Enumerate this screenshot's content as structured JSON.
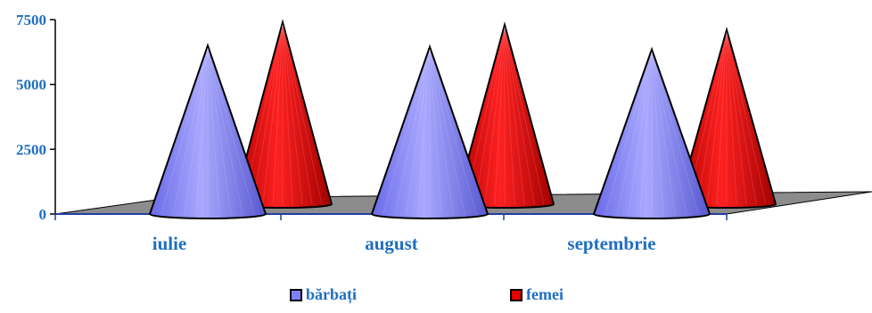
{
  "chart_data": {
    "type": "bar",
    "style": "3d-cone",
    "categories": [
      "iulie",
      "august",
      "septembrie"
    ],
    "series": [
      {
        "name": "bărbați",
        "values": [
          6500,
          6450,
          6350
        ],
        "color": "#8080ff"
      },
      {
        "name": "femei",
        "values": [
          7400,
          7300,
          7100
        ],
        "color": "#e00000"
      }
    ],
    "yticks": [
      0,
      2500,
      5000,
      7500
    ],
    "ylim": [
      0,
      7500
    ],
    "legend_position": "bottom",
    "grid": false
  },
  "legend": {
    "items": [
      "bărbați",
      "femei"
    ]
  }
}
